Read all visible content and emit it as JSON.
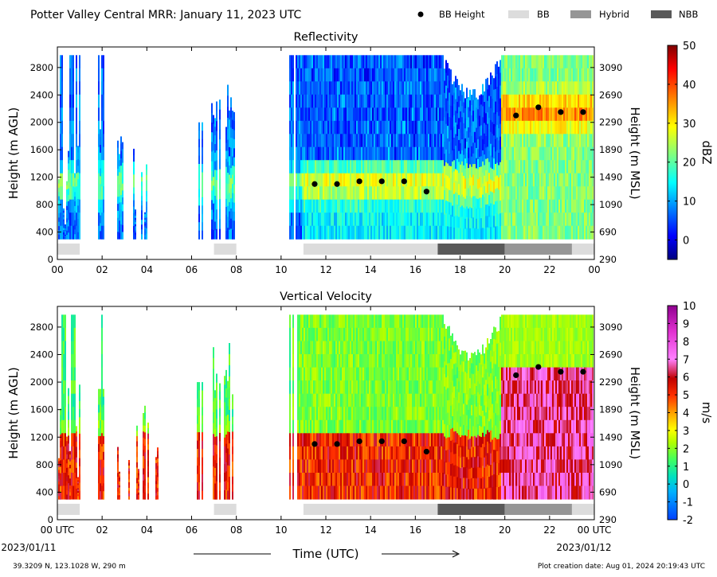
{
  "figure": {
    "title": "Potter Valley Central MRR:  January 11, 2023 UTC",
    "xlabel": "Time (UTC)",
    "location": "39.3209 N, 123.1028 W, 290 m",
    "creation": "Plot creation date: Aug 01, 2024 20:19:43 UTC",
    "start_date": "2023/01/11",
    "end_date": "2023/01/12",
    "legend": [
      {
        "label": "BB Height",
        "kind": "dot",
        "color": "#000000"
      },
      {
        "label": "BB",
        "kind": "rect",
        "color": "#dcdcdc"
      },
      {
        "label": "Hybrid",
        "kind": "rect",
        "color": "#969696"
      },
      {
        "label": "NBB",
        "kind": "rect",
        "color": "#595959"
      }
    ]
  },
  "chart_data": [
    {
      "type": "heatmap",
      "title": "Reflectivity",
      "ylabel_left": "Height (m AGL)",
      "ylabel_right": "Height (m MSL)",
      "colorbar_label": "dBZ",
      "x_ticks": [
        "00",
        "02",
        "04",
        "06",
        "08",
        "10",
        "12",
        "14",
        "16",
        "18",
        "20",
        "22",
        "00"
      ],
      "x_range_hours": [
        0,
        24
      ],
      "y_range_agl_m": [
        0,
        3100
      ],
      "y_ticks_agl": [
        0,
        400,
        800,
        1200,
        1600,
        2000,
        2400,
        2800
      ],
      "y_ticks_msl": [
        290,
        690,
        1090,
        1490,
        1890,
        2290,
        2690,
        3090
      ],
      "colorbar_range": [
        -5,
        50
      ],
      "colorbar_ticks": [
        0,
        10,
        20,
        30,
        40,
        50
      ],
      "bb_height": {
        "x_hours": [
          11.5,
          12.5,
          13.5,
          14.5,
          15.5,
          16.5,
          20.5,
          21.5,
          22.5,
          23.5
        ],
        "y_m": [
          1100,
          1100,
          1140,
          1140,
          1140,
          990,
          2100,
          2220,
          2150,
          2150
        ]
      },
      "bb_type_segments": [
        {
          "start_h": 0.0,
          "end_h": 1.0,
          "kind": "BB"
        },
        {
          "start_h": 7.0,
          "end_h": 8.0,
          "kind": "BB"
        },
        {
          "start_h": 11.0,
          "end_h": 17.0,
          "kind": "BB"
        },
        {
          "start_h": 17.0,
          "end_h": 20.0,
          "kind": "NBB"
        },
        {
          "start_h": 20.0,
          "end_h": 23.0,
          "kind": "Hybrid"
        },
        {
          "start_h": 23.0,
          "end_h": 24.0,
          "kind": "BB"
        }
      ]
    },
    {
      "type": "heatmap",
      "title": "Vertical Velocity",
      "ylabel_left": "Height (m AGL)",
      "ylabel_right": "Height (m MSL)",
      "colorbar_label": "m/s",
      "x_ticks": [
        "00 UTC",
        "02",
        "04",
        "06",
        "08",
        "10",
        "12",
        "14",
        "16",
        "18",
        "20",
        "22",
        "00 UTC"
      ],
      "x_range_hours": [
        0,
        24
      ],
      "y_range_agl_m": [
        0,
        3100
      ],
      "y_ticks_agl": [
        0,
        400,
        800,
        1200,
        1600,
        2000,
        2400,
        2800
      ],
      "y_ticks_msl": [
        290,
        690,
        1090,
        1490,
        1890,
        2290,
        2690,
        3090
      ],
      "colorbar_range": [
        -2,
        10
      ],
      "colorbar_ticks": [
        -2,
        -1,
        0,
        1,
        2,
        3,
        4,
        5,
        6,
        7,
        8,
        9,
        10
      ],
      "bb_height": {
        "x_hours": [
          11.5,
          12.5,
          13.5,
          14.5,
          15.5,
          16.5,
          20.5,
          21.5,
          22.5,
          23.5
        ],
        "y_m": [
          1100,
          1100,
          1140,
          1140,
          1140,
          990,
          2100,
          2220,
          2150,
          2150
        ]
      },
      "bb_type_segments": [
        {
          "start_h": 0.0,
          "end_h": 1.0,
          "kind": "BB"
        },
        {
          "start_h": 7.0,
          "end_h": 8.0,
          "kind": "BB"
        },
        {
          "start_h": 11.0,
          "end_h": 17.0,
          "kind": "BB"
        },
        {
          "start_h": 17.0,
          "end_h": 20.0,
          "kind": "NBB"
        },
        {
          "start_h": 20.0,
          "end_h": 23.0,
          "kind": "Hybrid"
        },
        {
          "start_h": 23.0,
          "end_h": 24.0,
          "kind": "BB"
        }
      ]
    }
  ]
}
